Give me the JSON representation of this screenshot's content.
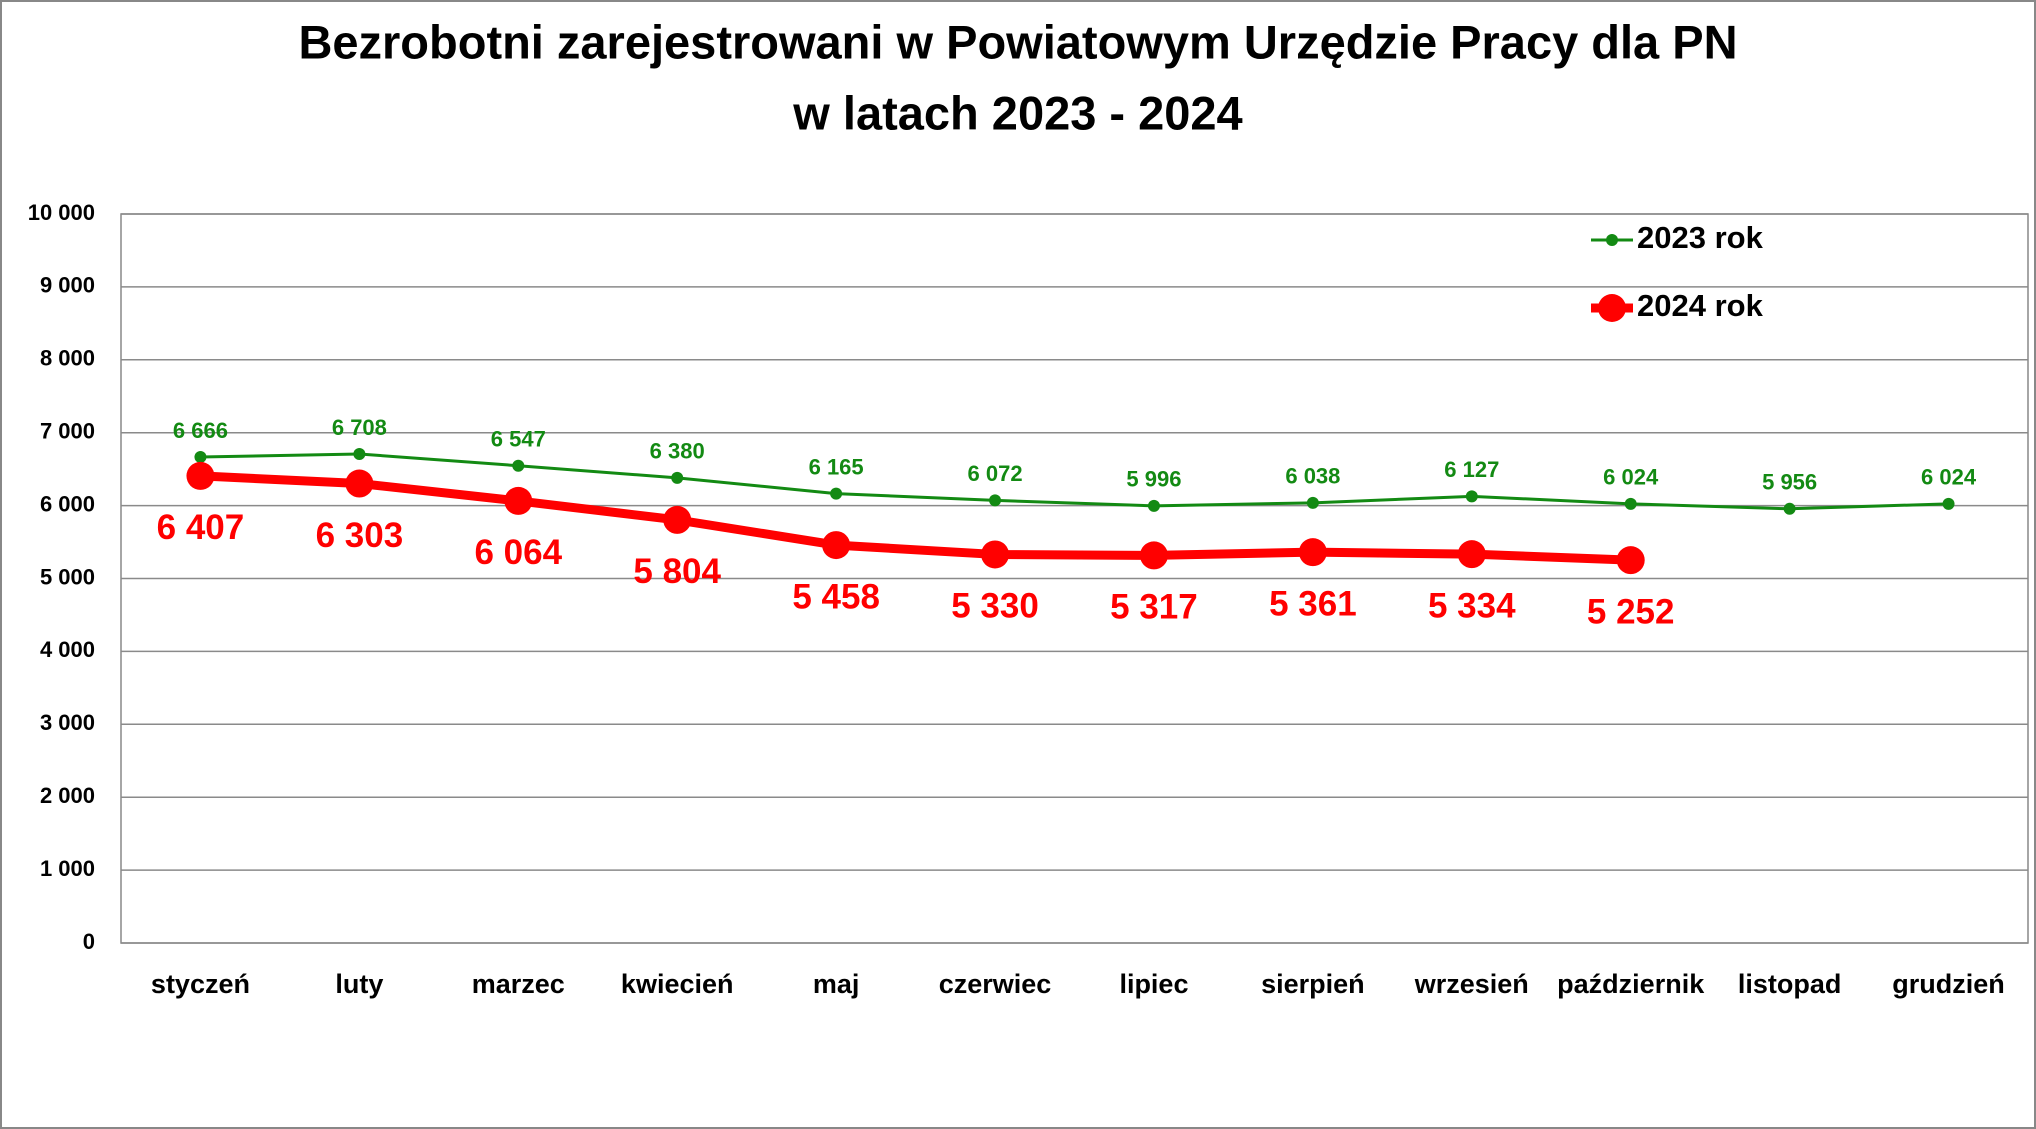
{
  "chart_data": {
    "type": "line",
    "title": [
      "Bezrobotni zarejestrowani w Powiatowym Urzędzie Pracy dla PN",
      "w latach 2023 - 2024"
    ],
    "categories": [
      "styczeń",
      "luty",
      "marzec",
      "kwiecień",
      "maj",
      "czerwiec",
      "lipiec",
      "sierpień",
      "wrzesień",
      "październik",
      "listopad",
      "grudzień"
    ],
    "series": [
      {
        "name": "2023 rok",
        "color": "#138a13",
        "values": [
          6666,
          6708,
          6547,
          6380,
          6165,
          6072,
          5996,
          6038,
          6127,
          6024,
          5956,
          6024
        ],
        "value_labels": [
          "6 666",
          "6 708",
          "6 547",
          "6 380",
          "6 165",
          "6 072",
          "5 996",
          "6 038",
          "6 127",
          "6 024",
          "5 956",
          "6 024"
        ]
      },
      {
        "name": "2024 rok",
        "color": "#ff0000",
        "values": [
          6407,
          6303,
          6064,
          5804,
          5458,
          5330,
          5317,
          5361,
          5334,
          5252,
          null,
          null
        ],
        "value_labels": [
          "6 407",
          "6 303",
          "6 064",
          "5 804",
          "5 458",
          "5 330",
          "5 317",
          "5 361",
          "5 334",
          "5 252",
          null,
          null
        ]
      }
    ],
    "ylim": [
      0,
      10000
    ],
    "yticks": [
      0,
      {
        "value": 1000,
        "label": "1 000"
      },
      {
        "value": 2000,
        "label": "2 000"
      },
      {
        "value": 3000,
        "label": "3 000"
      },
      {
        "value": 4000,
        "label": "4 000"
      },
      {
        "value": 5000,
        "label": "5 000"
      },
      {
        "value": 6000,
        "label": "6 000"
      },
      {
        "value": 7000,
        "label": "7 000"
      },
      {
        "value": 8000,
        "label": "8 000"
      },
      {
        "value": 9000,
        "label": "9 000"
      },
      {
        "value": 10000,
        "label": "10 000"
      }
    ],
    "grid": true,
    "legend": "upper right"
  }
}
